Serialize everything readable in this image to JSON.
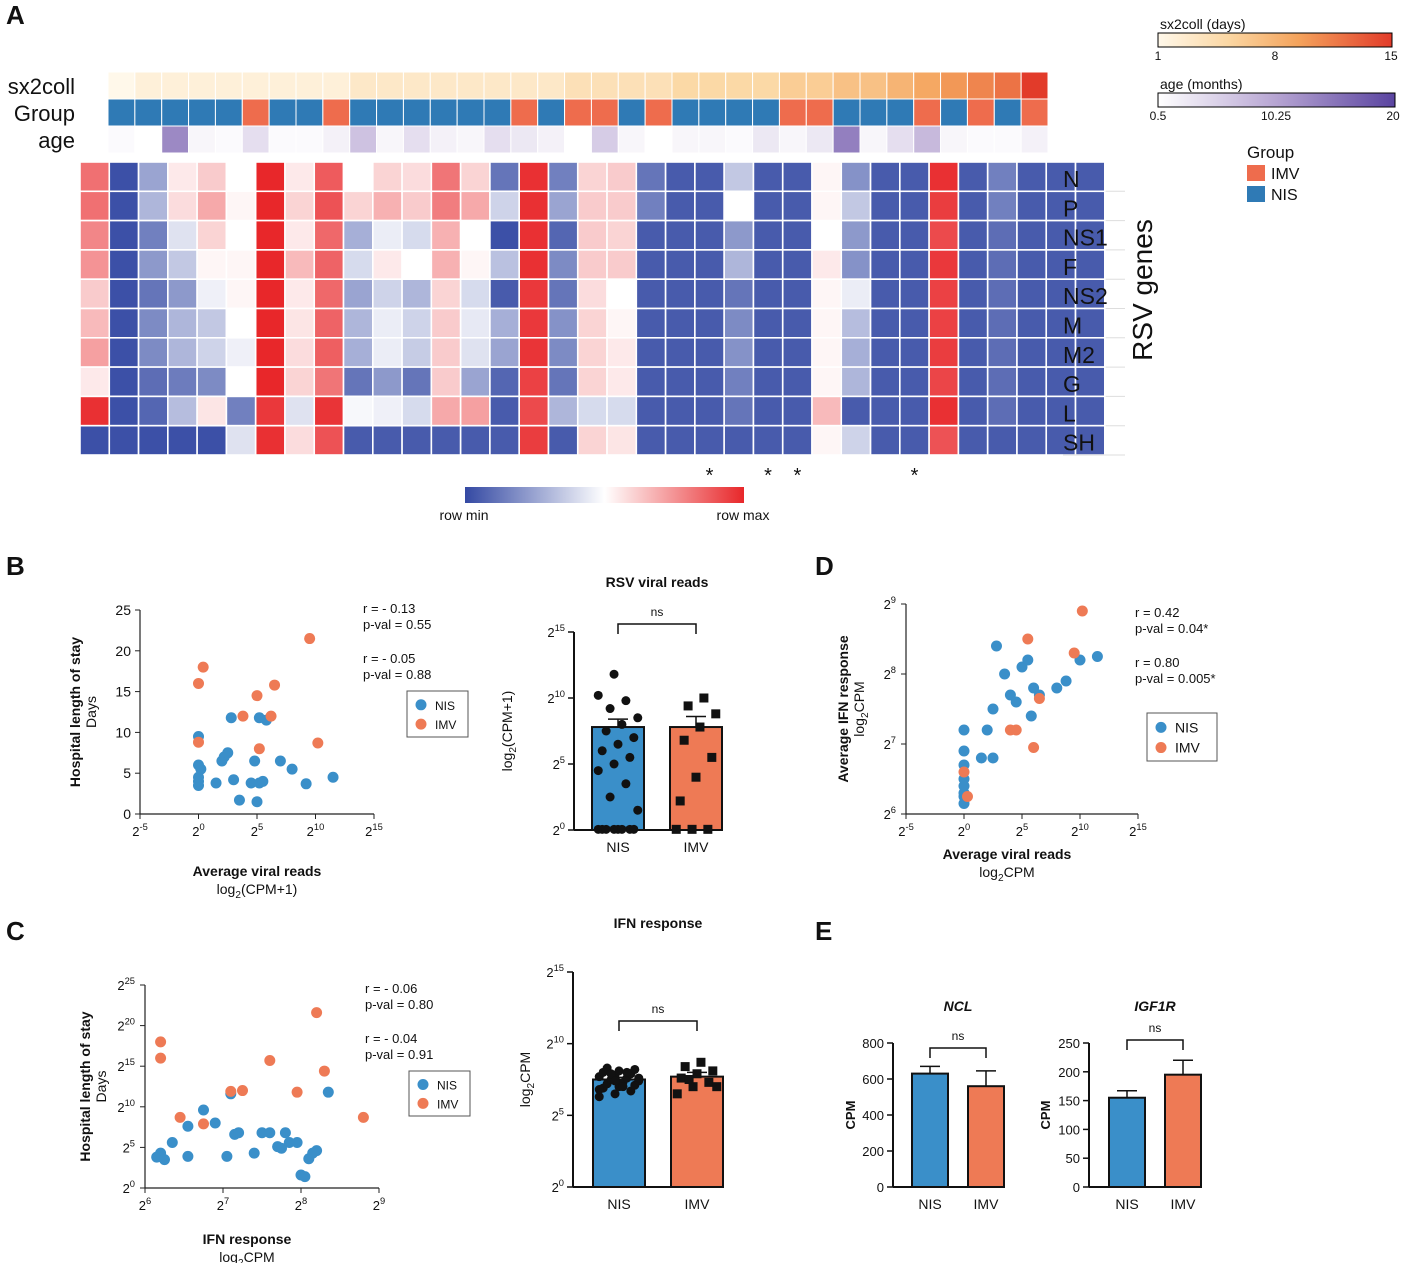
{
  "colors": {
    "nis": "#3a8fc9",
    "imv": "#ee7a55",
    "r_nis": "#2a8fd0",
    "r_imv": "#f07a4c",
    "row_min": "#3449a3",
    "row_mid": "#ffffff",
    "row_max": "#e8272a"
  },
  "panels": {
    "A": "A",
    "B": "B",
    "C": "C",
    "D": "D",
    "E": "E"
  },
  "heatmap": {
    "ann_labels": [
      "sx2coll",
      "Group",
      "age"
    ],
    "genes": [
      "N",
      "P",
      "NS1",
      "F",
      "NS2",
      "M",
      "M2",
      "G",
      "L",
      "SH"
    ],
    "genes_title": "RSV genes",
    "sx2coll": [
      1,
      2,
      2,
      2,
      2,
      2,
      2,
      2,
      2,
      3,
      3,
      3,
      3,
      3,
      3,
      3,
      3,
      4,
      4,
      4,
      4,
      5,
      5,
      5,
      5,
      6,
      6,
      7,
      7,
      8,
      9,
      10,
      11,
      12,
      15
    ],
    "group": [
      "NIS",
      "NIS",
      "NIS",
      "NIS",
      "NIS",
      "IMV",
      "NIS",
      "NIS",
      "IMV",
      "NIS",
      "NIS",
      "NIS",
      "NIS",
      "NIS",
      "NIS",
      "IMV",
      "NIS",
      "IMV",
      "IMV",
      "NIS",
      "IMV",
      "NIS",
      "NIS",
      "NIS",
      "NIS",
      "IMV",
      "IMV",
      "NIS",
      "NIS",
      "NIS",
      "IMV",
      "NIS",
      "IMV",
      "NIS",
      "IMV"
    ],
    "age": [
      1,
      0.5,
      13,
      1.5,
      1,
      4,
      1,
      1,
      2,
      7,
      1.5,
      4,
      2,
      1.5,
      4,
      3,
      2,
      0.5,
      6,
      1.5,
      0,
      1.5,
      1.5,
      1,
      3,
      1.5,
      3,
      14,
      1.5,
      4,
      8,
      1.5,
      1,
      1,
      2
    ],
    "values": [
      [
        0.83,
        0.02,
        0.25,
        0.55,
        0.62,
        0.5,
        1,
        0.55,
        0.88,
        0.5,
        0.6,
        0.58,
        0.82,
        0.6,
        0.12,
        0.98,
        0.15,
        0.6,
        0.62,
        0.12,
        0.05,
        0.05,
        0.35,
        0.05,
        0.05,
        0.52,
        0.2,
        0.05,
        0.05,
        0.98,
        0.05,
        0.15,
        0.05,
        0.05,
        0.05
      ],
      [
        0.83,
        0.02,
        0.3,
        0.58,
        0.7,
        0.52,
        1,
        0.6,
        0.9,
        0.6,
        0.68,
        0.62,
        0.8,
        0.7,
        0.38,
        0.98,
        0.25,
        0.62,
        0.62,
        0.15,
        0.05,
        0.05,
        0.5,
        0.05,
        0.05,
        0.52,
        0.35,
        0.05,
        0.05,
        0.95,
        0.05,
        0.15,
        0.05,
        0.05,
        0.05
      ],
      [
        0.78,
        0.02,
        0.15,
        0.42,
        0.6,
        0.5,
        1,
        0.55,
        0.85,
        0.28,
        0.45,
        0.4,
        0.68,
        0.5,
        0.02,
        0.98,
        0.08,
        0.62,
        0.6,
        0.05,
        0.05,
        0.05,
        0.22,
        0.05,
        0.05,
        0.5,
        0.22,
        0.05,
        0.05,
        0.92,
        0.05,
        0.1,
        0.05,
        0.05,
        0.05
      ],
      [
        0.75,
        0.02,
        0.22,
        0.35,
        0.52,
        0.52,
        1,
        0.66,
        0.86,
        0.4,
        0.55,
        0.5,
        0.68,
        0.52,
        0.33,
        0.98,
        0.18,
        0.62,
        0.62,
        0.05,
        0.05,
        0.05,
        0.3,
        0.05,
        0.05,
        0.55,
        0.2,
        0.05,
        0.05,
        0.96,
        0.05,
        0.1,
        0.05,
        0.05,
        0.05
      ],
      [
        0.62,
        0.02,
        0.12,
        0.22,
        0.46,
        0.52,
        1,
        0.55,
        0.85,
        0.25,
        0.38,
        0.3,
        0.6,
        0.4,
        0.05,
        0.96,
        0.12,
        0.58,
        0.5,
        0.05,
        0.05,
        0.05,
        0.12,
        0.05,
        0.05,
        0.52,
        0.45,
        0.05,
        0.05,
        0.94,
        0.05,
        0.1,
        0.05,
        0.05,
        0.05
      ],
      [
        0.66,
        0.02,
        0.18,
        0.3,
        0.35,
        0.5,
        1,
        0.56,
        0.86,
        0.3,
        0.45,
        0.38,
        0.62,
        0.44,
        0.28,
        0.96,
        0.2,
        0.6,
        0.52,
        0.05,
        0.05,
        0.05,
        0.18,
        0.05,
        0.05,
        0.52,
        0.32,
        0.05,
        0.05,
        0.94,
        0.05,
        0.1,
        0.05,
        0.05,
        0.05
      ],
      [
        0.72,
        0.02,
        0.18,
        0.3,
        0.38,
        0.46,
        1,
        0.58,
        0.87,
        0.28,
        0.45,
        0.36,
        0.62,
        0.42,
        0.25,
        0.97,
        0.18,
        0.6,
        0.55,
        0.05,
        0.05,
        0.05,
        0.2,
        0.05,
        0.05,
        0.52,
        0.28,
        0.05,
        0.05,
        0.95,
        0.05,
        0.1,
        0.05,
        0.05,
        0.05
      ],
      [
        0.55,
        0.02,
        0.1,
        0.14,
        0.18,
        0.5,
        1,
        0.6,
        0.82,
        0.12,
        0.22,
        0.12,
        0.62,
        0.25,
        0.08,
        0.94,
        0.12,
        0.6,
        0.55,
        0.05,
        0.05,
        0.05,
        0.15,
        0.05,
        0.05,
        0.52,
        0.3,
        0.05,
        0.05,
        0.93,
        0.05,
        0.1,
        0.05,
        0.05,
        0.05
      ],
      [
        0.98,
        0.02,
        0.08,
        0.32,
        0.56,
        0.15,
        0.96,
        0.42,
        0.97,
        0.48,
        0.46,
        0.4,
        0.7,
        0.72,
        0.05,
        0.92,
        0.3,
        0.4,
        0.4,
        0.05,
        0.05,
        0.05,
        0.12,
        0.05,
        0.05,
        0.66,
        0.05,
        0.05,
        0.05,
        0.98,
        0.05,
        0.1,
        0.05,
        0.05,
        0.05
      ],
      [
        0.02,
        0.02,
        0.02,
        0.02,
        0.02,
        0.42,
        0.98,
        0.58,
        0.9,
        0.05,
        0.05,
        0.05,
        0.05,
        0.05,
        0.05,
        0.95,
        0.05,
        0.6,
        0.56,
        0.05,
        0.05,
        0.05,
        0.05,
        0.05,
        0.05,
        0.52,
        0.38,
        0.05,
        0.05,
        0.9,
        0.05,
        0.05,
        0.05,
        0.05,
        0.05
      ]
    ],
    "stars": [
      "*",
      "*",
      "*",
      "*"
    ],
    "star_cols": [
      21,
      23,
      24,
      28
    ],
    "legend_min": "row min",
    "legend_max": "row max",
    "sx_legend": {
      "title": "sx2coll (days)",
      "ticks": [
        "1",
        "8",
        "15"
      ]
    },
    "age_legend": {
      "title": "age (months)",
      "ticks": [
        "0.5",
        "10.25",
        "20"
      ]
    },
    "group_legend": {
      "title": "Group",
      "items": [
        "IMV",
        "NIS"
      ]
    }
  },
  "chart_data": [
    {
      "id": "B-scatter",
      "type": "scatter",
      "xlabel": "Average viral reads",
      "xlabel2": "log2(CPM+1)",
      "ylabel": "Hospital length of stay",
      "ylabel2": "Days",
      "x_range": [
        -5,
        15
      ],
      "y_range": [
        0,
        25
      ],
      "x_ticks": [
        -5,
        0,
        5,
        10,
        15
      ],
      "y_ticks": [
        0,
        5,
        10,
        15,
        20,
        25
      ],
      "series": [
        {
          "name": "NIS",
          "x": [
            0,
            0,
            0,
            0,
            0,
            0.2,
            1.5,
            2,
            2.2,
            2.5,
            3.5,
            4.5,
            5,
            5.2,
            5.5,
            7,
            8,
            9.2,
            11.5,
            4.8,
            5.2,
            5.8,
            2.8,
            3
          ],
          "y": [
            3.5,
            4,
            4.5,
            6,
            9.5,
            5.5,
            3.8,
            6.5,
            7,
            7.5,
            1.7,
            3.8,
            1.5,
            3.8,
            4,
            6.5,
            5.5,
            3.7,
            4.5,
            6.5,
            11.8,
            11.5,
            11.8,
            4.2
          ]
        },
        {
          "name": "IMV",
          "x": [
            0,
            0.4,
            0,
            3.8,
            5,
            6.5,
            5.2,
            6.2,
            9.5,
            10.2
          ],
          "y": [
            16,
            18,
            8.8,
            12,
            14.5,
            15.8,
            8,
            12,
            21.5,
            8.7
          ]
        }
      ],
      "stats": [
        {
          "r": "r = - 0.13",
          "p": "p-val = 0.55"
        },
        {
          "r": "r = - 0.05",
          "p": "p-val = 0.88"
        }
      ]
    },
    {
      "id": "B-bar",
      "type": "bar",
      "title": "RSV viral reads",
      "ylabel": "log2(CPM+1)",
      "categories": [
        "NIS",
        "IMV"
      ],
      "values": [
        7.8,
        7.8
      ],
      "sem": [
        0.6,
        0.8
      ],
      "y_range": [
        0,
        15
      ],
      "y_ticks": [
        0,
        5,
        10,
        15
      ],
      "annotation": "ns",
      "points": [
        [
          0,
          0,
          0,
          0,
          0,
          0,
          0,
          0,
          1.5,
          2.5,
          3.5,
          4.5,
          5,
          5.5,
          6,
          6.5,
          7,
          7.5,
          8,
          8.5,
          9.2,
          9.8,
          10.2,
          11.8
        ],
        [
          0,
          0,
          0,
          2.2,
          4,
          5.5,
          6.8,
          7.8,
          8.8,
          9.4,
          10
        ]
      ]
    },
    {
      "id": "C-scatter",
      "type": "scatter",
      "xlabel": "IFN response",
      "xlabel2": "log2CPM",
      "ylabel": "Hospital length of stay",
      "ylabel2": "Days",
      "x_range": [
        6,
        9
      ],
      "y_range": [
        0,
        25
      ],
      "x_ticks": [
        6,
        7,
        8,
        9
      ],
      "y_ticks": [
        0,
        5,
        10,
        15,
        20,
        25
      ],
      "series": [
        {
          "name": "NIS",
          "x": [
            6.15,
            6.2,
            6.25,
            6.35,
            6.55,
            6.55,
            6.75,
            7.1,
            7.15,
            7.2,
            7.4,
            7.5,
            7.6,
            7.7,
            7.75,
            7.8,
            7.85,
            7.95,
            8.0,
            8.05,
            8.1,
            8.15,
            8.2,
            8.35,
            6.9,
            7.05
          ],
          "y": [
            3.8,
            4.3,
            3.5,
            5.6,
            3.9,
            7.6,
            9.6,
            11.6,
            6.6,
            6.8,
            4.3,
            6.8,
            6.8,
            5.1,
            4.9,
            6.8,
            5.6,
            5.6,
            1.6,
            1.4,
            3.6,
            4.3,
            4.6,
            11.8,
            8.0,
            3.9
          ]
        },
        {
          "name": "IMV",
          "x": [
            6.2,
            6.2,
            6.45,
            6.75,
            7.1,
            7.6,
            7.95,
            8.2,
            8.3,
            8.8,
            7.25
          ],
          "y": [
            18,
            16,
            8.7,
            7.9,
            11.9,
            15.7,
            11.8,
            21.6,
            14.4,
            8.7,
            12
          ]
        }
      ],
      "stats": [
        {
          "r": "r = - 0.06",
          "p": "p-val = 0.80"
        },
        {
          "r": "r = - 0.04",
          "p": "p-val = 0.91"
        }
      ]
    },
    {
      "id": "C-bar",
      "type": "bar",
      "title": "IFN response",
      "ylabel": "log2CPM",
      "categories": [
        "NIS",
        "IMV"
      ],
      "values": [
        7.5,
        7.7
      ],
      "sem": [
        0.15,
        0.3
      ],
      "y_range": [
        0,
        15
      ],
      "y_ticks": [
        0,
        5,
        10,
        15
      ],
      "annotation": "ns",
      "points": [
        [
          6.3,
          6.5,
          6.7,
          6.9,
          7.0,
          7.1,
          7.2,
          7.3,
          7.4,
          7.5,
          7.6,
          7.7,
          7.8,
          7.9,
          8.0,
          8.1,
          8.2,
          8.3,
          7.0,
          7.6,
          7.9,
          8.0,
          6.8,
          7.4
        ],
        [
          6.5,
          7.0,
          7.3,
          7.6,
          7.9,
          8.1,
          8.4,
          8.7,
          7.0,
          7.5
        ]
      ]
    },
    {
      "id": "D-scatter",
      "type": "scatter",
      "xlabel": "Average viral reads",
      "xlabel2": "log2CPM",
      "ylabel": "Average IFN response",
      "ylabel2": "log2CPM",
      "x_range": [
        -5,
        15
      ],
      "y_range": [
        6,
        9
      ],
      "x_ticks": [
        -5,
        0,
        5,
        10,
        15
      ],
      "y_ticks": [
        6,
        7,
        8,
        9
      ],
      "series": [
        {
          "name": "NIS",
          "x": [
            0,
            0,
            0,
            0,
            0,
            0,
            0,
            0,
            1.5,
            2,
            2.5,
            2.5,
            2.8,
            3.5,
            4,
            4.5,
            5,
            5.5,
            5.8,
            6,
            6.5,
            8,
            8.8,
            10,
            11.5
          ],
          "y": [
            6.15,
            6.25,
            6.3,
            6.4,
            6.5,
            6.9,
            7.2,
            6.7,
            6.8,
            7.2,
            6.8,
            7.5,
            8.4,
            8.0,
            7.7,
            7.6,
            8.1,
            8.2,
            7.4,
            7.8,
            7.7,
            7.8,
            7.9,
            8.2,
            8.25
          ]
        },
        {
          "name": "IMV",
          "x": [
            0,
            0.3,
            4,
            4.5,
            5.5,
            6,
            6.5,
            9.5,
            10.2
          ],
          "y": [
            6.6,
            6.25,
            7.2,
            7.2,
            8.5,
            6.95,
            7.65,
            8.3,
            8.9
          ]
        }
      ],
      "stats": [
        {
          "r": "r = 0.42",
          "p": "p-val = 0.04*"
        },
        {
          "r": "r = 0.80",
          "p": "p-val = 0.005*"
        }
      ]
    },
    {
      "id": "E-NCL",
      "type": "bar",
      "title": "NCL",
      "ylabel": "CPM",
      "categories": [
        "NIS",
        "IMV"
      ],
      "values": [
        630,
        560
      ],
      "sem": [
        40,
        85
      ],
      "y_range": [
        0,
        800
      ],
      "y_ticks": [
        0,
        200,
        400,
        600,
        800
      ],
      "annotation": "ns"
    },
    {
      "id": "E-IGF1R",
      "type": "bar",
      "title": "IGF1R",
      "ylabel": "CPM",
      "categories": [
        "NIS",
        "IMV"
      ],
      "values": [
        155,
        195
      ],
      "sem": [
        12,
        25
      ],
      "y_range": [
        0,
        250
      ],
      "y_ticks": [
        0,
        50,
        100,
        150,
        200,
        250
      ],
      "annotation": "ns"
    }
  ],
  "legend_labels": {
    "nis": "NIS",
    "imv": "IMV"
  },
  "text": {
    "two": "2"
  }
}
